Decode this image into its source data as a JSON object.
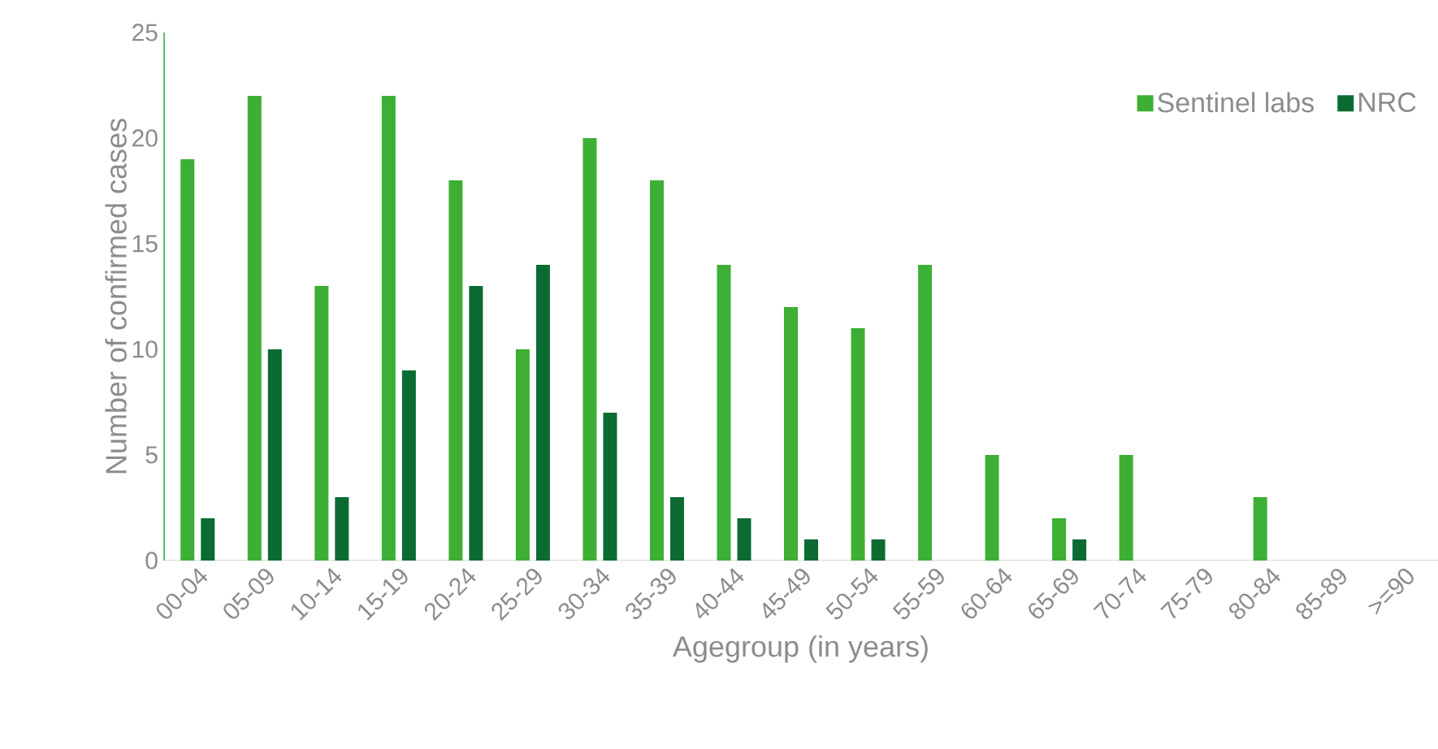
{
  "chart_data": {
    "type": "bar",
    "xlabel": "Agegroup (in years)",
    "ylabel": "Number of confirmed cases",
    "categories": [
      "00-04",
      "05-09",
      "10-14",
      "15-19",
      "20-24",
      "25-29",
      "30-34",
      "35-39",
      "40-44",
      "45-49",
      "50-54",
      "55-59",
      "60-64",
      "65-69",
      "70-74",
      "75-79",
      "80-84",
      "85-89",
      ">=90"
    ],
    "series": [
      {
        "name": "Sentinel labs",
        "color": "#3daf35",
        "values": [
          19,
          22,
          13,
          22,
          18,
          10,
          20,
          18,
          14,
          12,
          11,
          14,
          5,
          2,
          5,
          0,
          3,
          0,
          0
        ]
      },
      {
        "name": "NRC",
        "color": "#0b6b33",
        "values": [
          2,
          10,
          3,
          9,
          13,
          14,
          7,
          3,
          2,
          1,
          1,
          0,
          0,
          1,
          0,
          0,
          0,
          0,
          0
        ]
      }
    ],
    "ylim": [
      0,
      25
    ],
    "yticks": [
      0,
      5,
      10,
      15,
      20,
      25
    ],
    "grid": false,
    "legend": "top right"
  }
}
